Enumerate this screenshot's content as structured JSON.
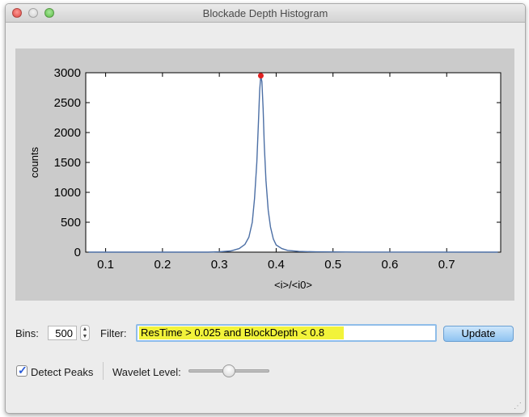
{
  "window": {
    "title": "Blockade Depth Histogram"
  },
  "controls": {
    "bins_label": "Bins:",
    "bins_value": "500",
    "filter_label": "Filter:",
    "filter_value": "ResTime > 0.025 and BlockDepth < 0.8",
    "update_label": "Update",
    "detect_peaks_label": "Detect Peaks",
    "detect_peaks_checked": true,
    "wavelet_label": "Wavelet Level:",
    "wavelet_level": 0.5
  },
  "colors": {
    "line": "#4c6fa5",
    "peak_marker": "#e02020",
    "highlight": "#f2f33a"
  },
  "chart_data": {
    "type": "line",
    "xlabel": "<i>/<i0>",
    "ylabel": "counts",
    "xlim": [
      0.065,
      0.795
    ],
    "ylim": [
      0,
      3000
    ],
    "xticks": [
      "0.1",
      "0.2",
      "0.3",
      "0.4",
      "0.5",
      "0.6",
      "0.7"
    ],
    "yticks": [
      "0",
      "500",
      "1000",
      "1500",
      "2000",
      "2500",
      "3000"
    ],
    "series": [
      {
        "x": [
          0.07,
          0.28,
          0.3,
          0.32,
          0.335,
          0.345,
          0.352,
          0.358,
          0.362,
          0.366,
          0.369,
          0.371,
          0.373,
          0.375,
          0.377,
          0.379,
          0.382,
          0.386,
          0.39,
          0.395,
          0.4,
          0.41,
          0.42,
          0.44,
          0.47,
          0.55,
          0.79
        ],
        "y": [
          0,
          0,
          5,
          20,
          60,
          130,
          250,
          500,
          900,
          1500,
          2200,
          2700,
          2950,
          2850,
          2400,
          1800,
          1200,
          700,
          420,
          220,
          120,
          60,
          30,
          12,
          5,
          2,
          0
        ]
      }
    ],
    "peak": {
      "x": 0.373,
      "y": 2950
    }
  }
}
